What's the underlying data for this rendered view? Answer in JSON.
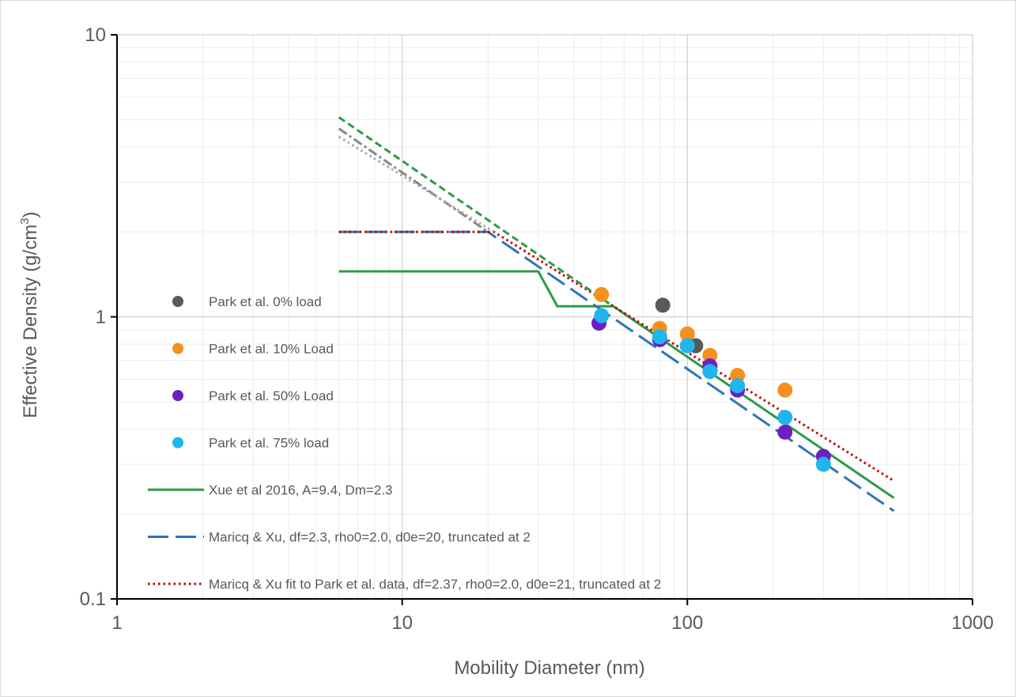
{
  "chart_data": {
    "type": "scatter",
    "xlabel": "Mobility Diameter (nm)",
    "ylabel": "Effective Density (g/cm",
    "ylabel_sup": "3",
    "ylabel_close": ")",
    "xscale": "log",
    "yscale": "log",
    "xlim": [
      1,
      1000
    ],
    "ylim": [
      0.1,
      10
    ],
    "xticks": [
      1,
      10,
      100,
      1000
    ],
    "xtick_labels": [
      "1",
      "10",
      "100",
      "1000"
    ],
    "yticks": [
      0.1,
      1,
      10
    ],
    "ytick_labels": [
      "0.1",
      "1",
      "10"
    ],
    "grid": true,
    "legend_position": "left-center",
    "series": [
      {
        "name": "Park et al. 0% load",
        "kind": "marker",
        "color": "#595959",
        "x": [
          82,
          107
        ],
        "y": [
          1.1,
          0.79
        ]
      },
      {
        "name": "Park et al. 10% Load",
        "kind": "marker",
        "color": "#f5901e",
        "x": [
          50,
          80,
          100,
          120,
          150,
          220
        ],
        "y": [
          1.2,
          0.91,
          0.87,
          0.73,
          0.62,
          0.55
        ]
      },
      {
        "name": "Park et al. 50% Load",
        "kind": "marker",
        "color": "#6e1fc2",
        "x": [
          49,
          80,
          100,
          120,
          150,
          220,
          300
        ],
        "y": [
          0.95,
          0.83,
          0.79,
          0.67,
          0.55,
          0.39,
          0.32
        ]
      },
      {
        "name": "Park et al. 75% load",
        "kind": "marker",
        "color": "#1fb5ee",
        "x": [
          50,
          80,
          100,
          120,
          150,
          220,
          300
        ],
        "y": [
          1.01,
          0.85,
          0.79,
          0.64,
          0.57,
          0.44,
          0.3
        ]
      },
      {
        "name": "Xue et al 2016, A=9.4, Dm=2.3",
        "kind": "line",
        "color": "#2e9a47",
        "dash": "solid",
        "x": [
          6,
          30,
          35,
          55,
          530
        ],
        "y": [
          1.45,
          1.45,
          1.09,
          1.09,
          0.228
        ]
      },
      {
        "name": "Maricq & Xu, df=2.3, rho0=2.0, d0e=20, truncated at 2",
        "kind": "line",
        "color": "#2e75b6",
        "dash": "longdash",
        "x": [
          6,
          20,
          530
        ],
        "y": [
          2.0,
          2.0,
          0.205
        ]
      },
      {
        "name": "Maricq & Xu fit to Park et al. data, df=2.37, rho0=2.0, d0e=21, truncated at 2",
        "kind": "line",
        "color": "#c00000",
        "dash": "dot",
        "x": [
          6,
          21,
          530
        ],
        "y": [
          2.0,
          2.0,
          0.262
        ]
      },
      {
        "name": "",
        "kind": "line",
        "color": "#2e9a47",
        "dash": "shortdash",
        "legend": false,
        "x": [
          6,
          55
        ],
        "y": [
          5.1,
          1.09
        ]
      },
      {
        "name": "",
        "kind": "line",
        "color": "#888888",
        "dash": "dashdot",
        "legend": false,
        "x": [
          6,
          20
        ],
        "y": [
          4.65,
          2.0
        ]
      },
      {
        "name": "",
        "kind": "line",
        "color": "#a6a6a6",
        "dash": "dot",
        "legend": false,
        "x": [
          6,
          21
        ],
        "y": [
          4.35,
          2.0
        ]
      }
    ]
  }
}
